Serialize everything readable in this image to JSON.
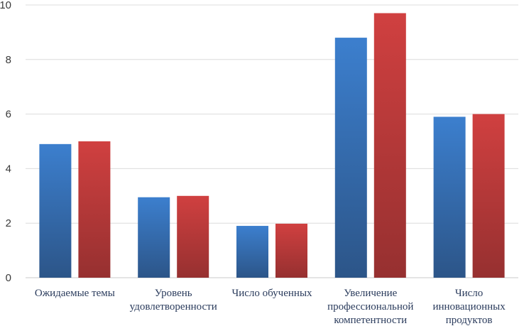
{
  "chart_data": {
    "type": "bar",
    "title": "",
    "xlabel": "",
    "ylabel": "",
    "ylim": [
      0,
      10
    ],
    "yticks": [
      0,
      2,
      4,
      6,
      8,
      10
    ],
    "grid": true,
    "legend": "none",
    "categories": [
      [
        "Ожидаемые темы"
      ],
      [
        "Уровень",
        "удовлетворенности"
      ],
      [
        "Число обученных"
      ],
      [
        "Увеличение",
        "профессиональной",
        "компетентности"
      ],
      [
        "Число",
        "инновационных",
        "продуктов"
      ]
    ],
    "series": [
      {
        "color": "#3c7fce",
        "color_dark": "#2c5588",
        "values": [
          4.9,
          2.95,
          1.9,
          8.8,
          5.9
        ]
      },
      {
        "color": "#d04040",
        "color_dark": "#963030",
        "values": [
          5.0,
          3.0,
          1.98,
          9.7,
          6.0
        ]
      }
    ]
  }
}
